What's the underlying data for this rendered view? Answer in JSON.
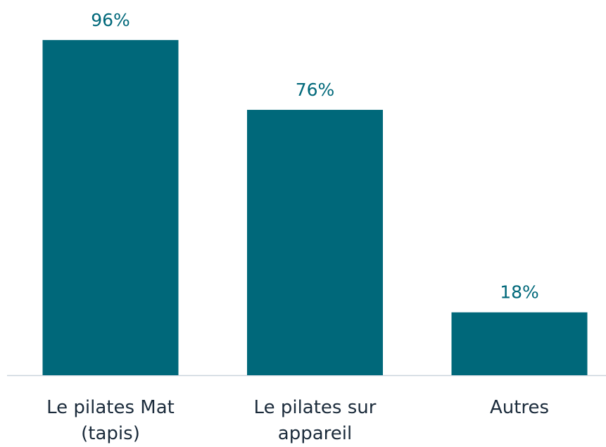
{
  "chart_data": {
    "type": "bar",
    "categories": [
      "Le pilates Mat (tapis)",
      "Le pilates sur appareil",
      "Autres"
    ],
    "values": [
      96,
      76,
      18
    ],
    "value_labels": [
      "96%",
      "76%",
      "18%"
    ],
    "color": "#00687a"
  }
}
